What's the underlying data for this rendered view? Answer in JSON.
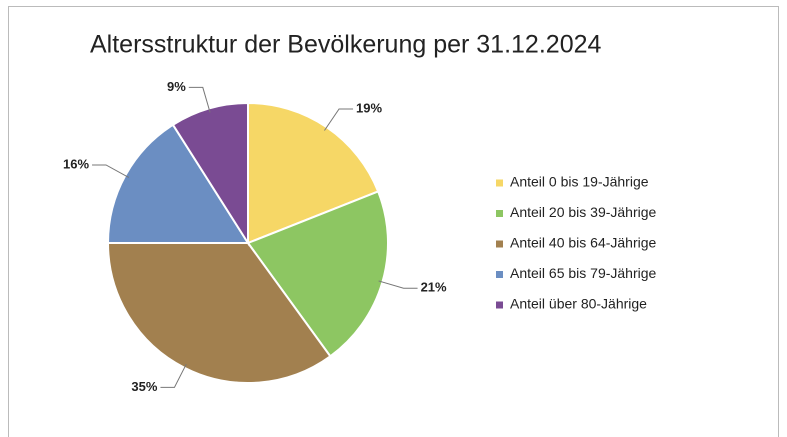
{
  "chart_data": {
    "type": "pie",
    "title": "Altersstruktur der Bevölkerung per 31.12.2024",
    "categories": [
      "Anteil 0 bis 19-Jährige",
      "Anteil 20 bis 39-Jährige",
      "Anteil 40 bis 64-Jährige",
      "Anteil 65 bis 79-Jährige",
      "Anteil über 80-Jährige"
    ],
    "values": [
      19,
      21,
      35,
      16,
      9
    ],
    "value_labels": [
      "19%",
      "21%",
      "35%",
      "16%",
      "9%"
    ],
    "colors": [
      "#f6d766",
      "#8dc662",
      "#a2804f",
      "#6b8ec2",
      "#7a4b93"
    ],
    "legend": "right"
  }
}
